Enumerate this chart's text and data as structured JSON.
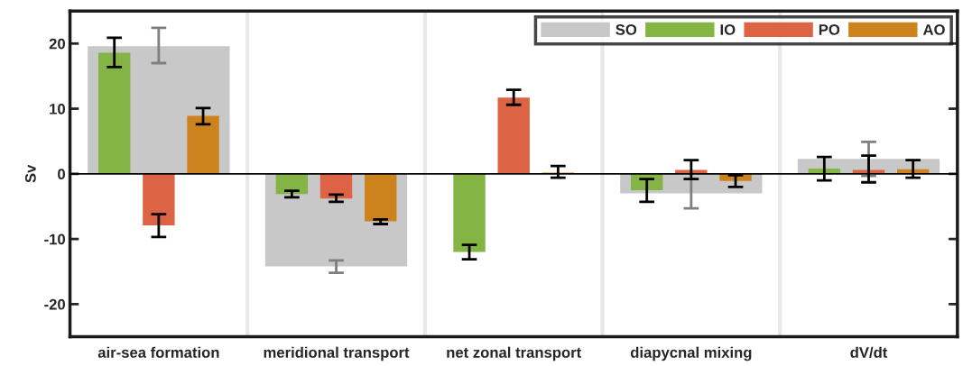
{
  "chart_data": {
    "type": "bar",
    "ylabel": "Sv",
    "categories": [
      "air-sea formation",
      "meridional transport",
      "net zonal transport",
      "diapycnal mixing",
      "dV/dt"
    ],
    "series": [
      {
        "name": "SO",
        "color": "#c8c8c8",
        "values": [
          19.6,
          -14.2,
          null,
          -3.0,
          2.3
        ],
        "errors": [
          [
            17.0,
            22.4
          ],
          [
            -15.2,
            -13.3
          ],
          null,
          [
            -5.3,
            -0.8
          ],
          [
            -0.3,
            4.9
          ]
        ]
      },
      {
        "name": "IO",
        "color": "#84b443",
        "values": [
          18.6,
          -3.1,
          -12.0,
          -2.5,
          0.8
        ],
        "errors": [
          [
            16.4,
            20.9
          ],
          [
            -3.6,
            -2.6
          ],
          [
            -13.1,
            -10.9
          ],
          [
            -4.3,
            -0.8
          ],
          [
            -1.0,
            2.6
          ]
        ]
      },
      {
        "name": "PO",
        "color": "#dc6444",
        "values": [
          -7.9,
          -3.8,
          11.7,
          0.6,
          0.6
        ],
        "errors": [
          [
            -9.7,
            -6.2
          ],
          [
            -4.3,
            -3.2
          ],
          [
            10.6,
            12.9
          ],
          [
            -0.8,
            2.1
          ],
          [
            -1.3,
            2.8
          ]
        ]
      },
      {
        "name": "AO",
        "color": "#cc831e",
        "values": [
          8.9,
          -7.3,
          0.2,
          -1.1,
          0.7
        ],
        "errors": [
          [
            7.6,
            10.1
          ],
          [
            -7.7,
            -7.0
          ],
          [
            -0.6,
            1.2
          ],
          [
            -2.0,
            -0.2
          ],
          [
            -0.6,
            2.1
          ]
        ]
      }
    ],
    "ylim": [
      -25,
      25
    ],
    "yticks": [
      -20,
      -10,
      0,
      10,
      20
    ],
    "ref_lines": [
      {
        "axis": "y",
        "value": 0,
        "color": "#000000"
      }
    ],
    "legend": "top right"
  }
}
